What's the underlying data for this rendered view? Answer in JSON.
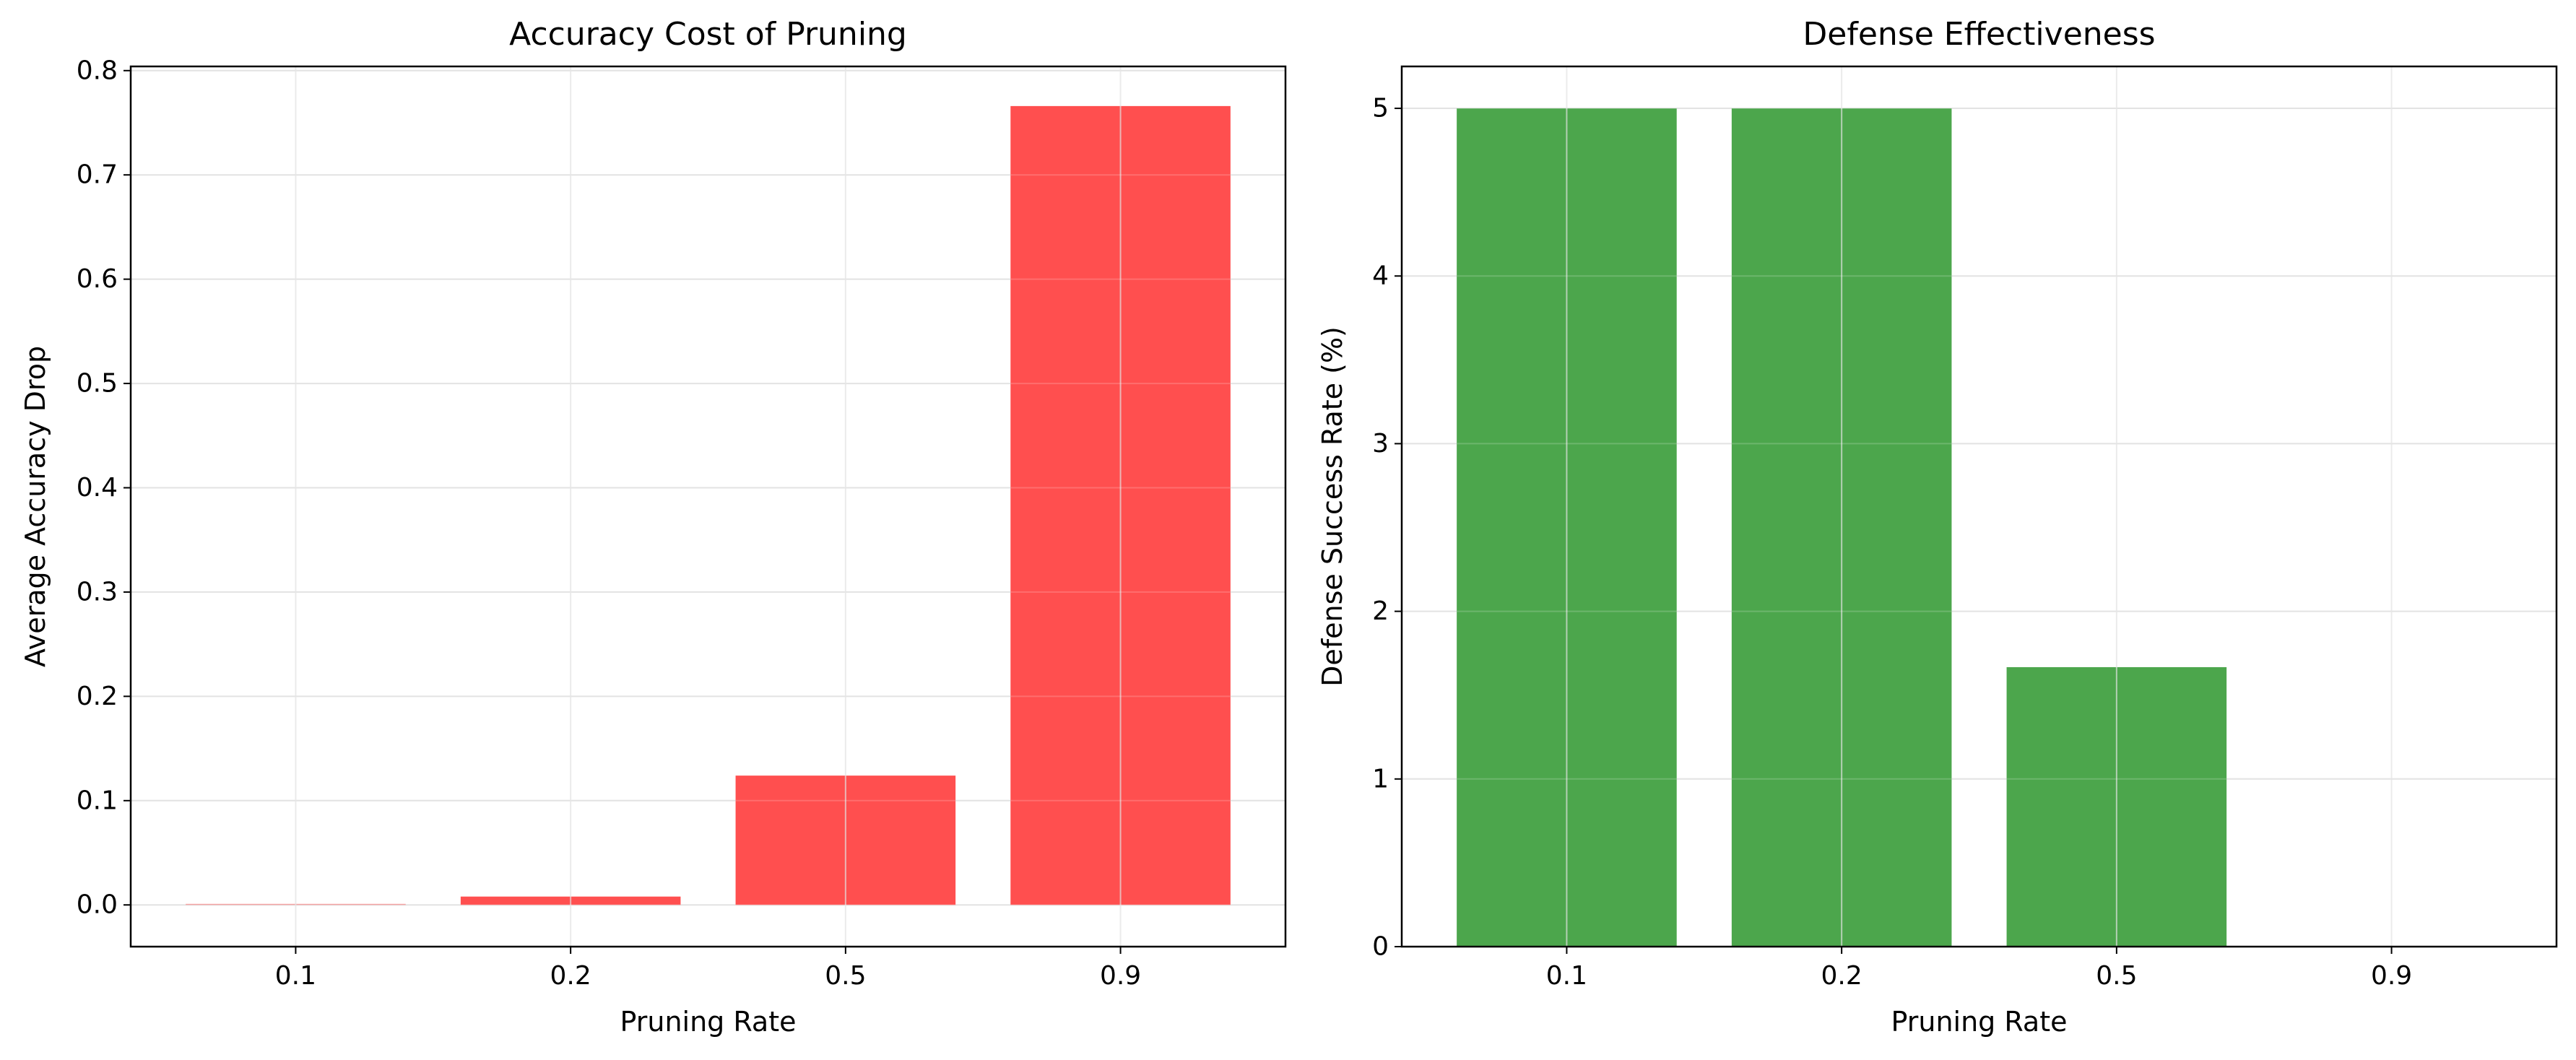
{
  "chart_data": [
    {
      "type": "bar",
      "title": "Accuracy Cost of Pruning",
      "xlabel": "Pruning Rate",
      "ylabel": "Average Accuracy Drop",
      "categories": [
        "0.1",
        "0.2",
        "0.5",
        "0.9"
      ],
      "values": [
        0.001,
        0.008,
        0.124,
        0.766
      ],
      "ylim": [
        -0.04,
        0.804
      ],
      "yticks": [
        0.0,
        0.1,
        0.2,
        0.3,
        0.4,
        0.5,
        0.6,
        0.7,
        0.8
      ],
      "ytick_labels": [
        "0.0",
        "0.1",
        "0.2",
        "0.3",
        "0.4",
        "0.5",
        "0.6",
        "0.7",
        "0.8"
      ],
      "color": "#ff4f4f",
      "grid": true
    },
    {
      "type": "bar",
      "title": "Defense Effectiveness",
      "xlabel": "Pruning Rate",
      "ylabel": "Defense Success Rate (%)",
      "categories": [
        "0.1",
        "0.2",
        "0.5",
        "0.9"
      ],
      "values": [
        5.0,
        5.0,
        1.667,
        0.0
      ],
      "ylim": [
        0,
        5.25
      ],
      "yticks": [
        0,
        1,
        2,
        3,
        4,
        5
      ],
      "ytick_labels": [
        "0",
        "1",
        "2",
        "3",
        "4",
        "5"
      ],
      "color": "#4ca64c",
      "grid": true
    }
  ]
}
